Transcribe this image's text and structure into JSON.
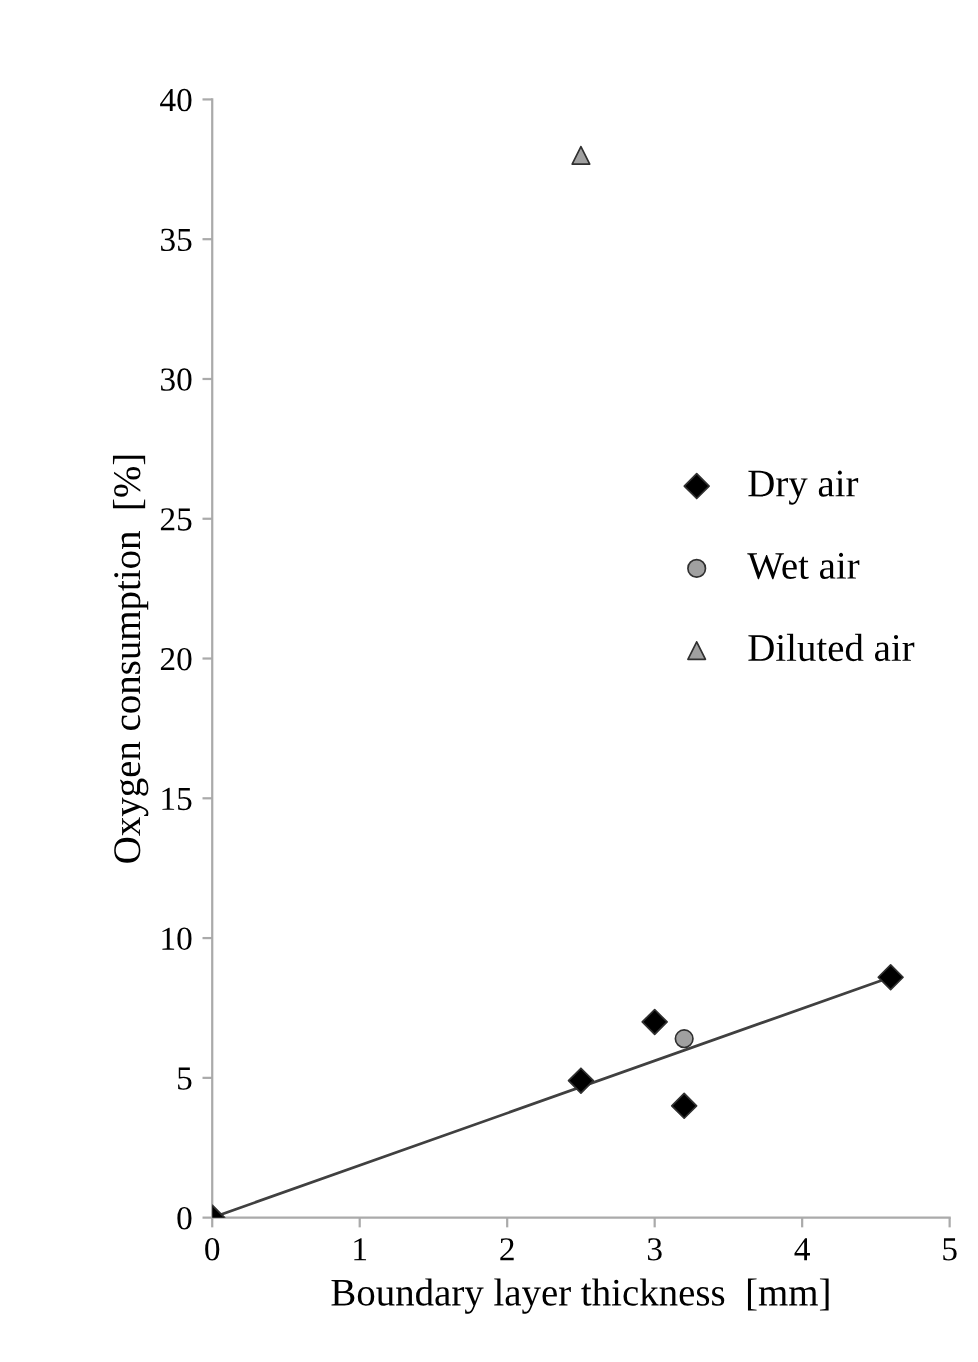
{
  "chart_data": {
    "type": "scatter",
    "xlabel": "Boundary layer thickness  [mm]",
    "ylabel": "Oxygen consumption  [%]",
    "xlim": [
      0,
      5
    ],
    "xticks": [
      0,
      1,
      2,
      3,
      4,
      5
    ],
    "ylim": [
      0,
      40
    ],
    "yticks": [
      0,
      5,
      10,
      15,
      20,
      25,
      30,
      35,
      40
    ],
    "grid": false,
    "legend": "right",
    "series": [
      {
        "name": "Dry air",
        "color": "#000000",
        "marker": "diamond",
        "x": [
          0,
          2.5,
          3.0,
          3.2,
          4.6
        ],
        "values": [
          0,
          4.9,
          7.0,
          4.0,
          8.6
        ]
      },
      {
        "name": "Wet air",
        "color": "#a0a0a0",
        "marker": "circle",
        "x": [
          3.2
        ],
        "values": [
          6.4
        ]
      },
      {
        "name": "Diluted air",
        "color": "#a0a0a0",
        "marker": "triangle",
        "x": [
          2.5
        ],
        "values": [
          38
        ]
      },
      {
        "type": "line",
        "color": "#404040",
        "marker": "none",
        "line_style": "solid",
        "x": [
          0,
          4.6
        ],
        "values": [
          0,
          8.6
        ]
      }
    ]
  }
}
